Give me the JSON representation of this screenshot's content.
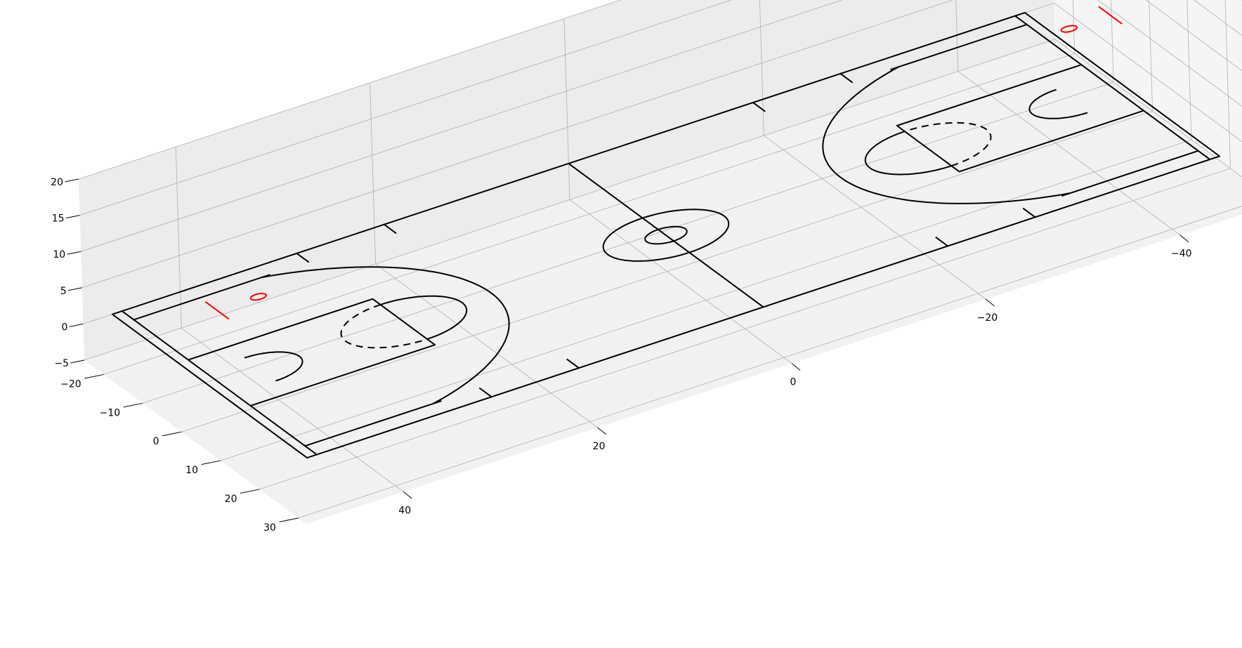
{
  "chart_data": {
    "type": "3d-line",
    "title": "",
    "xlabel": "",
    "ylabel": "",
    "zlabel": "",
    "xlim": [
      -50,
      50
    ],
    "ylim": [
      -25,
      32
    ],
    "zlim": [
      -5,
      20
    ],
    "grid": true,
    "legend": "none",
    "x_ticks": [
      {
        "value": -40,
        "label": "−40"
      },
      {
        "value": -20,
        "label": "−20"
      },
      {
        "value": 0,
        "label": "0"
      },
      {
        "value": 20,
        "label": "20"
      },
      {
        "value": 40,
        "label": "40"
      }
    ],
    "y_ticks": [
      {
        "value": -20,
        "label": "−20"
      },
      {
        "value": -10,
        "label": "−10"
      },
      {
        "value": 0,
        "label": "0"
      },
      {
        "value": 10,
        "label": "10"
      },
      {
        "value": 20,
        "label": "20"
      },
      {
        "value": 30,
        "label": "30"
      }
    ],
    "z_ticks": [
      {
        "value": -5,
        "label": "−5"
      },
      {
        "value": 0,
        "label": "0"
      },
      {
        "value": 5,
        "label": "5"
      },
      {
        "value": 10,
        "label": "10"
      },
      {
        "value": 15,
        "label": "15"
      },
      {
        "value": 20,
        "label": "20"
      }
    ],
    "court": {
      "outer_boundary": {
        "x": [
          -47,
          47
        ],
        "y": [
          -25,
          25
        ]
      },
      "inner_boundary": {
        "x": [
          -46,
          46
        ],
        "y": [
          -25,
          25
        ]
      },
      "half_court_line_x": 0,
      "center_circle_radius": 6,
      "center_inner_circle_radius": 2,
      "lane": {
        "length": 19,
        "half_width": 8
      },
      "free_throw_circle_radius": 6,
      "restricted_arc_radius": 4,
      "basket_x": 41.75,
      "three_point_radius": 23.75,
      "three_point_corner_y": 22,
      "three_point_corner_length": 14,
      "sideline_tick_x": [
        19,
        28,
        -19,
        -28
      ],
      "tick_length": 3
    },
    "series": [
      {
        "color": "#000000",
        "line_style": "solid",
        "line_width": 2
      },
      {
        "color": "#000000",
        "line_style": "dashed",
        "line_width": 2
      },
      {
        "color": "#ff0000",
        "line_style": "solid",
        "line_width": 2
      }
    ],
    "hoop": {
      "color": "#ff0000",
      "z": 10,
      "rim_radius": 0.75,
      "backboard_half_width": 3
    }
  },
  "colors": {
    "pane_back": "#ececec",
    "pane_side": "#f5f5f5",
    "pane_floor": "#f1f1f1",
    "grid": "#b0b0b0"
  }
}
